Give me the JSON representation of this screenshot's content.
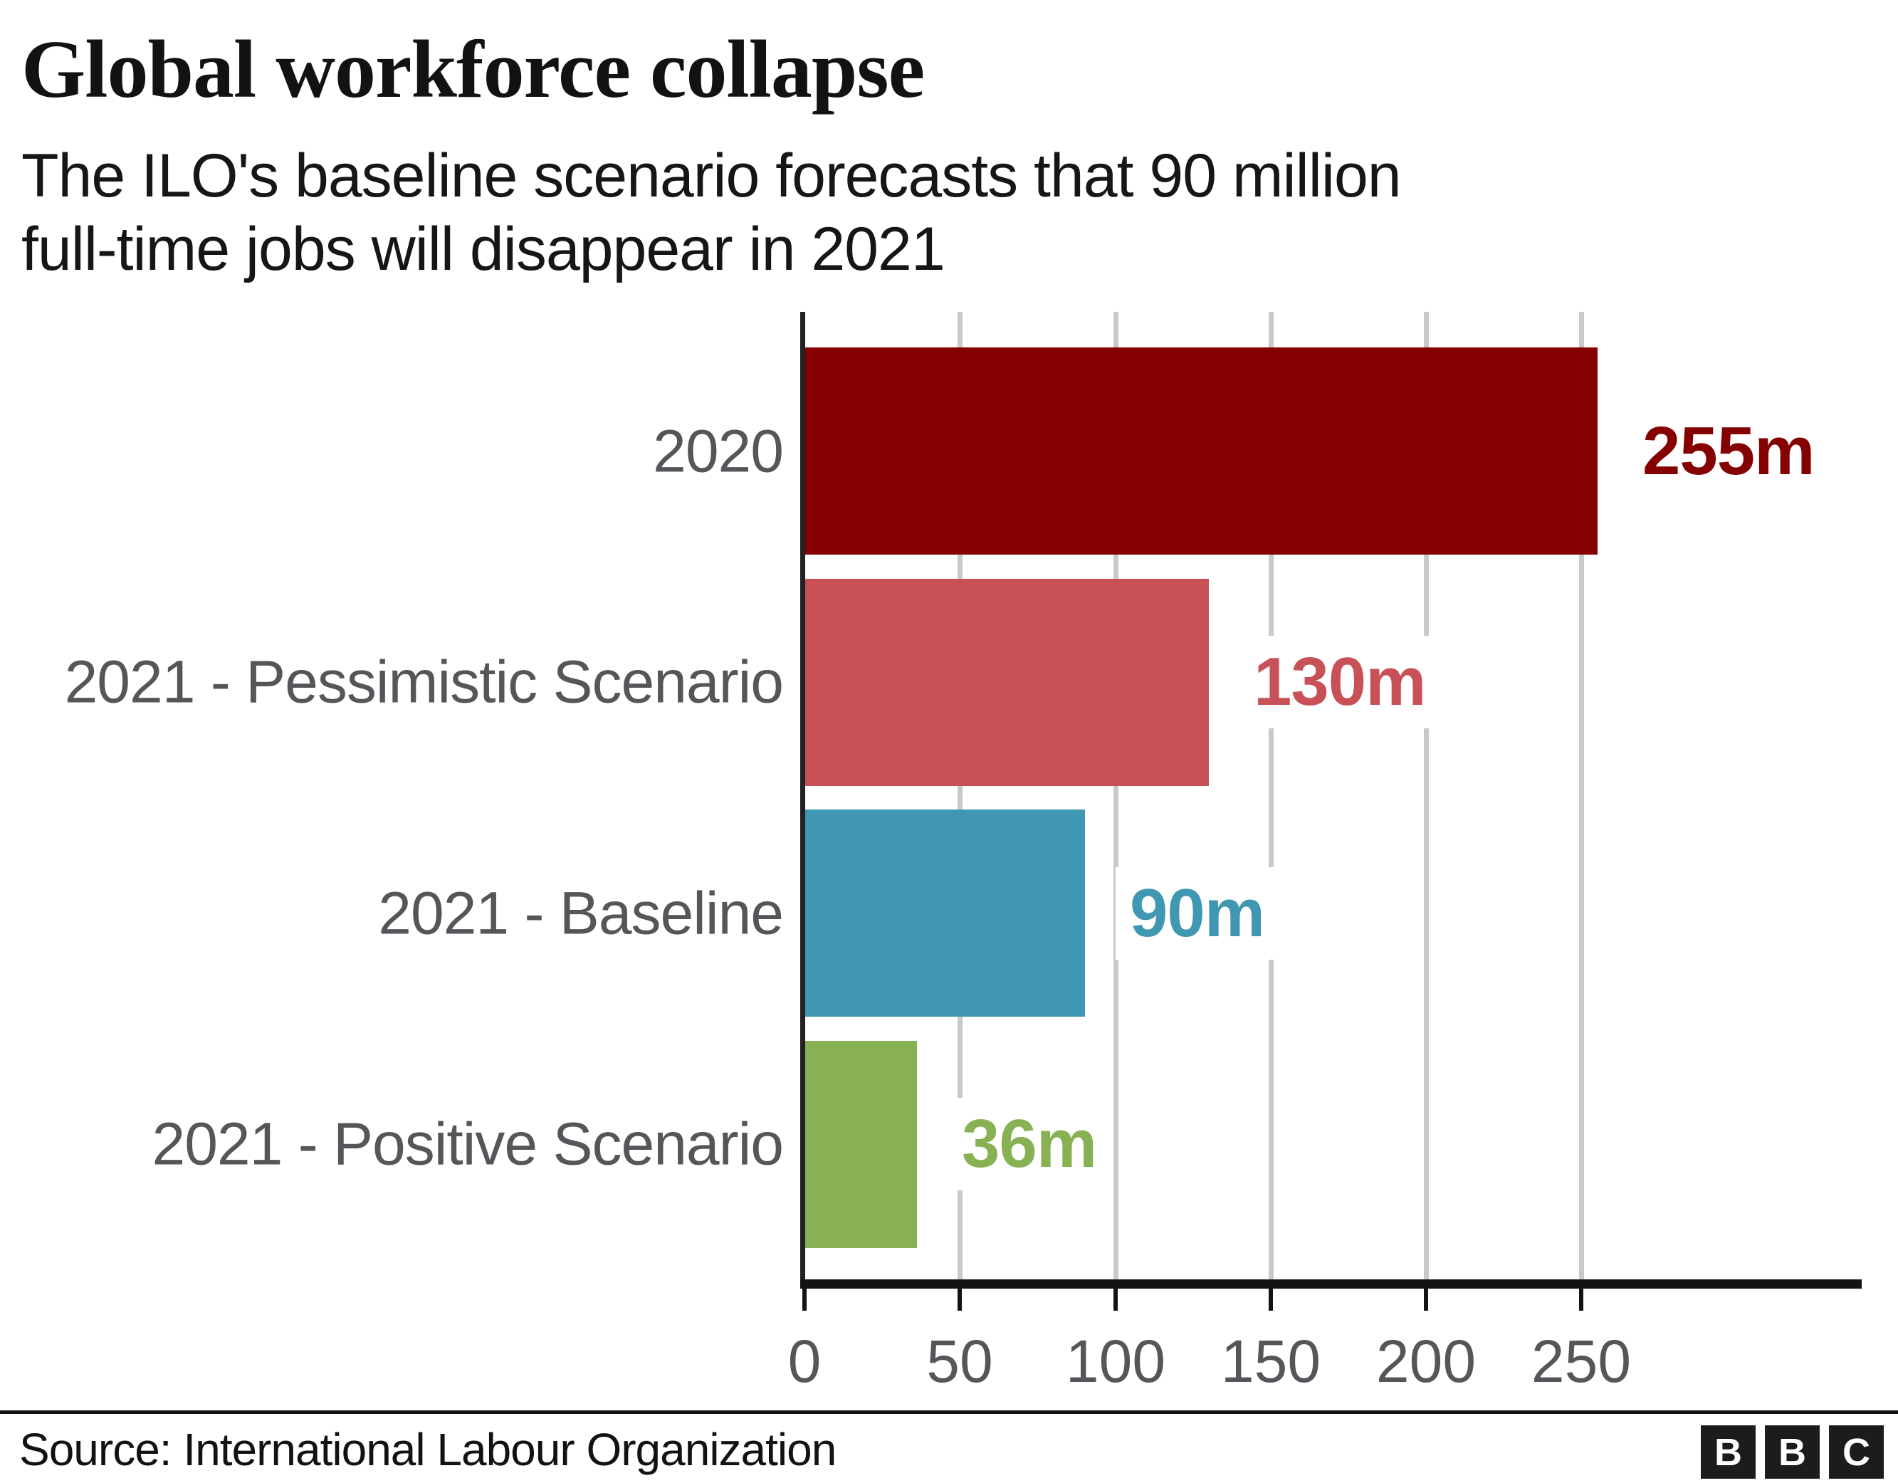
{
  "header": {
    "title": "Global workforce collapse",
    "subtitle_lines": [
      "The ILO's baseline scenario forecasts that 90 million",
      "full-time jobs will disappear in 2021"
    ]
  },
  "chart_data": {
    "type": "bar",
    "orientation": "horizontal",
    "title": "Global workforce collapse",
    "subtitle": "The ILO's baseline scenario forecasts that 90 million full-time jobs will disappear in 2021",
    "categories": [
      "2020",
      "2021 - Pessimistic Scenario",
      "2021 - Baseline",
      "2021 - Positive Scenario"
    ],
    "values": [
      255,
      130,
      90,
      36
    ],
    "value_labels": [
      "255m",
      "130m",
      "90m",
      "36m"
    ],
    "bar_colors": [
      "#850101",
      "#c85057",
      "#3f97b1",
      "#87b152"
    ],
    "x_ticks": [
      0,
      50,
      100,
      150,
      200,
      250
    ],
    "x_tick_labels": [
      "0",
      "50",
      "100",
      "150",
      "200",
      "250"
    ],
    "xlim": [
      0,
      340
    ],
    "unit": "millions of full-time jobs",
    "grid": "vertical",
    "legend": "none",
    "gridline_color": "#c9c9c9",
    "axis_color": "#131313",
    "label_color": "#55555a"
  },
  "footer": {
    "source": "Source: International Labour Organization",
    "logo_letters": [
      "B",
      "B",
      "C"
    ]
  }
}
